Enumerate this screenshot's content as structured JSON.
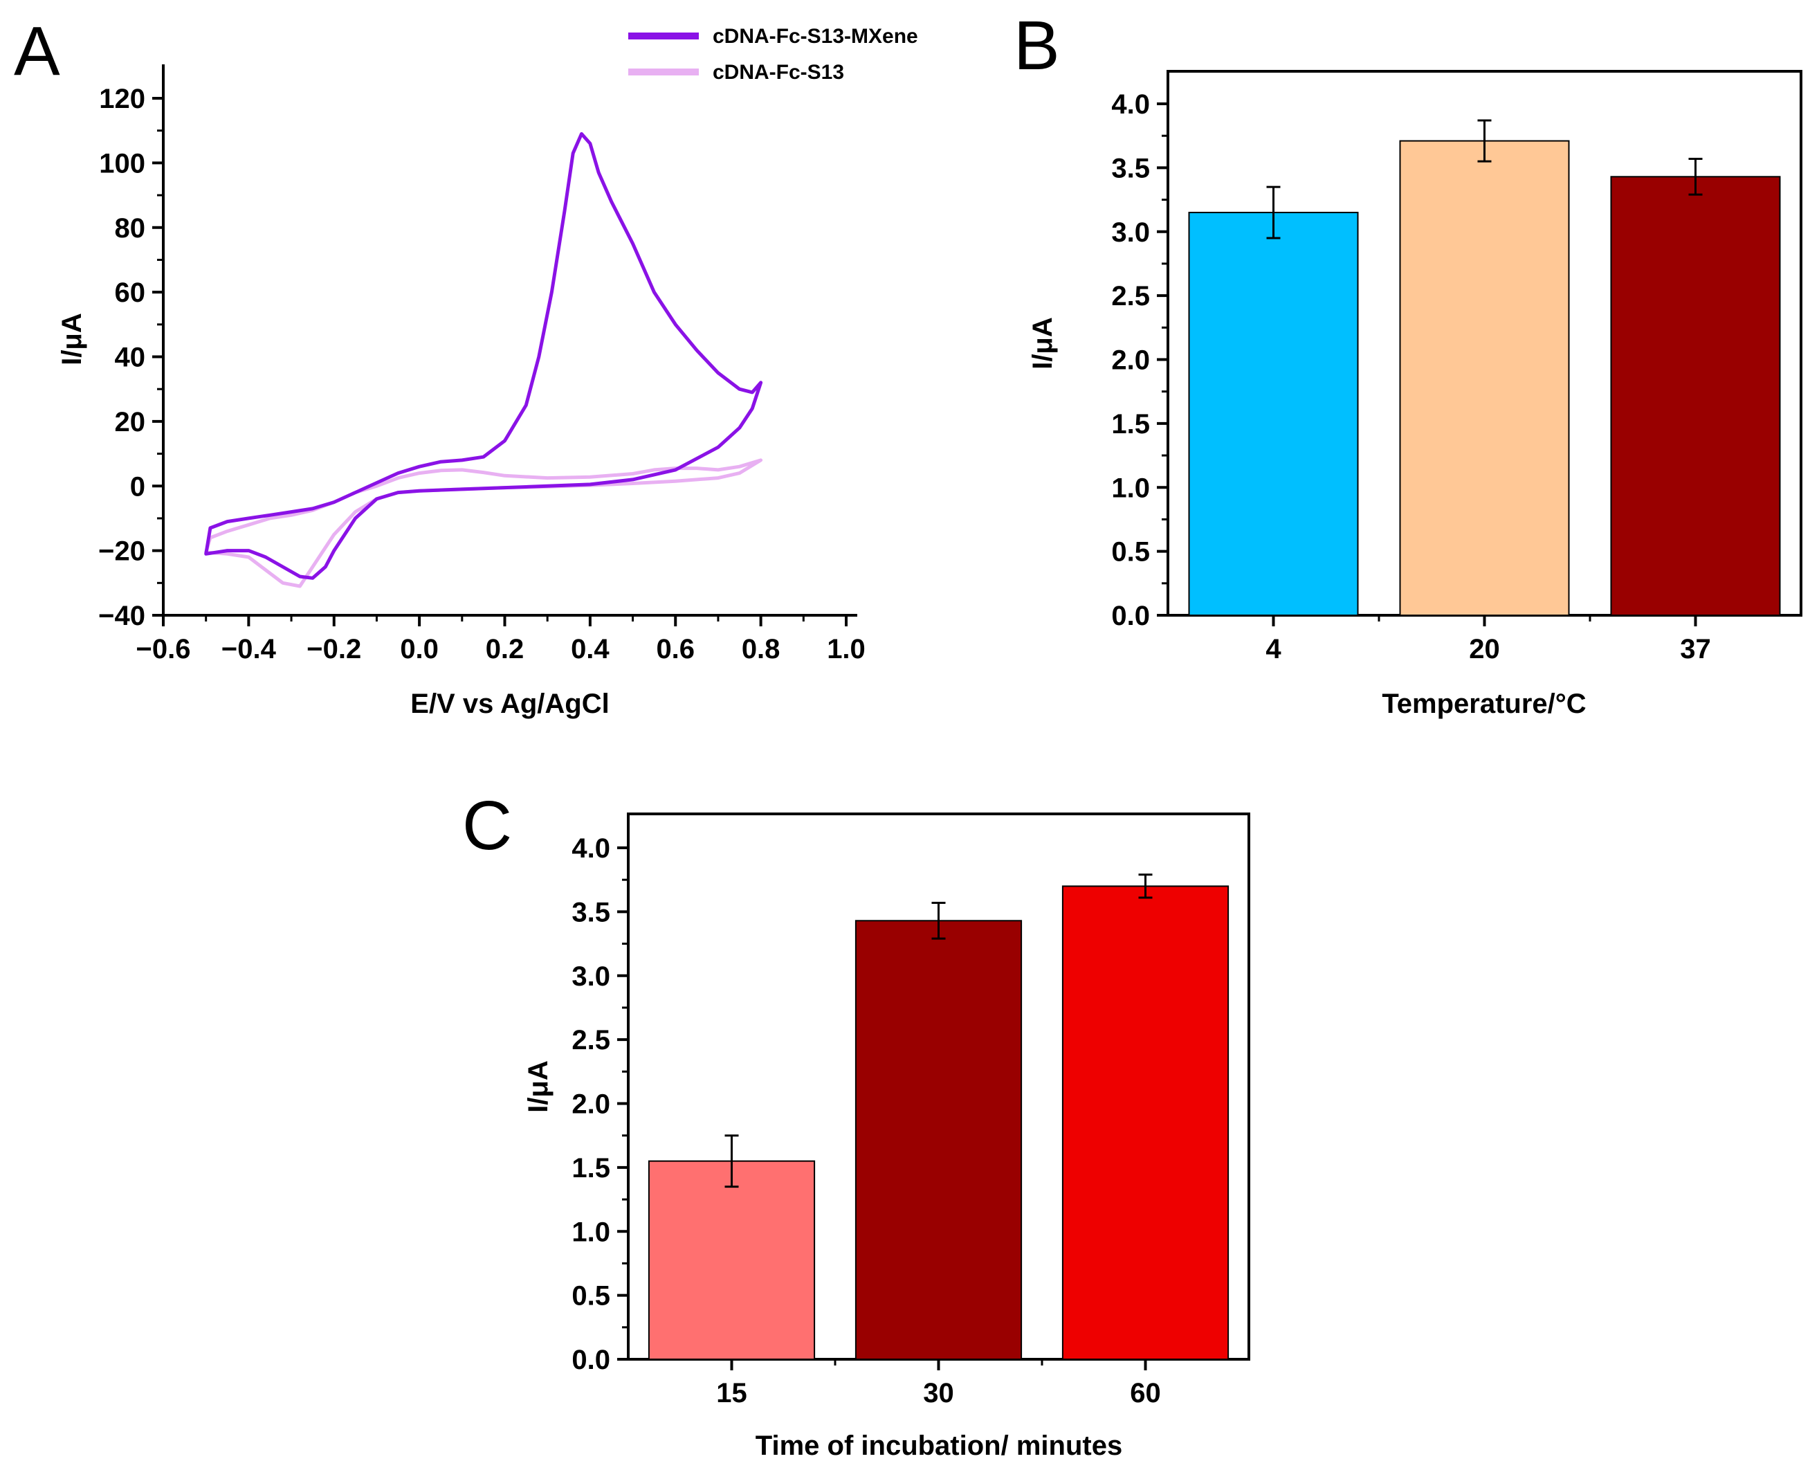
{
  "chart_data": [
    {
      "panel": "A",
      "type": "line",
      "xlabel": "E/V vs Ag/AgCl",
      "ylabel": "I/μA",
      "xlim": [
        -0.6,
        1.0
      ],
      "ylim": [
        -40,
        130
      ],
      "xticks": [
        -0.6,
        -0.4,
        -0.2,
        0.0,
        0.2,
        0.4,
        0.6,
        0.8,
        1.0
      ],
      "xtick_labels": [
        "−0.6",
        "−0.4",
        "−0.2",
        "0.0",
        "0.2",
        "0.4",
        "0.6",
        "0.8",
        "1.0"
      ],
      "yticks": [
        -40,
        -20,
        0,
        20,
        40,
        60,
        80,
        100,
        120
      ],
      "ytick_labels": [
        "−40",
        "−20",
        "0",
        "20",
        "40",
        "60",
        "80",
        "100",
        "120"
      ],
      "legend_position": "top-right",
      "series": [
        {
          "name": "cDNA-Fc-S13-MXene",
          "color": "#8a12e6",
          "x": [
            -0.49,
            -0.45,
            -0.4,
            -0.35,
            -0.3,
            -0.25,
            -0.2,
            -0.15,
            -0.1,
            -0.05,
            0.0,
            0.05,
            0.1,
            0.15,
            0.2,
            0.25,
            0.28,
            0.31,
            0.34,
            0.36,
            0.38,
            0.4,
            0.42,
            0.45,
            0.5,
            0.55,
            0.6,
            0.65,
            0.7,
            0.75,
            0.78,
            0.8,
            0.8,
            0.78,
            0.75,
            0.7,
            0.6,
            0.5,
            0.4,
            0.3,
            0.2,
            0.1,
            0.0,
            -0.05,
            -0.1,
            -0.15,
            -0.2,
            -0.22,
            -0.25,
            -0.28,
            -0.32,
            -0.36,
            -0.4,
            -0.45,
            -0.5,
            -0.49
          ],
          "y": [
            -13,
            -11,
            -10,
            -9,
            -8,
            -7,
            -5,
            -2,
            1,
            4,
            6,
            7.5,
            8,
            9,
            14,
            25,
            40,
            60,
            85,
            103,
            109,
            106,
            97,
            88,
            75,
            60,
            50,
            42,
            35,
            30,
            29,
            32,
            32,
            24,
            18,
            12,
            5,
            2,
            0.5,
            0,
            -0.5,
            -1,
            -1.5,
            -2,
            -4,
            -10,
            -20,
            -25,
            -28.5,
            -28,
            -25,
            -22,
            -20,
            -20,
            -21,
            -13
          ]
        },
        {
          "name": "cDNA-Fc-S13",
          "color": "#e8b0f2",
          "x": [
            -0.49,
            -0.45,
            -0.4,
            -0.35,
            -0.3,
            -0.25,
            -0.2,
            -0.15,
            -0.1,
            -0.05,
            0.0,
            0.05,
            0.1,
            0.15,
            0.2,
            0.3,
            0.4,
            0.5,
            0.55,
            0.6,
            0.65,
            0.7,
            0.75,
            0.8,
            0.8,
            0.75,
            0.7,
            0.6,
            0.5,
            0.4,
            0.3,
            0.2,
            0.1,
            0.0,
            -0.05,
            -0.1,
            -0.15,
            -0.2,
            -0.25,
            -0.28,
            -0.32,
            -0.36,
            -0.4,
            -0.45,
            -0.5,
            -0.49
          ],
          "y": [
            -16,
            -14,
            -12,
            -10,
            -9,
            -7.5,
            -5,
            -2,
            0,
            2.5,
            4,
            4.8,
            5,
            4.2,
            3.2,
            2.5,
            2.8,
            3.8,
            5,
            5.5,
            5.5,
            5,
            6,
            8,
            8,
            4,
            2.5,
            1.5,
            0.8,
            0.2,
            -0.2,
            -0.5,
            -1,
            -1.5,
            -2,
            -4,
            -8,
            -15,
            -25,
            -31,
            -30,
            -26,
            -22,
            -21,
            -20.5,
            -16
          ]
        }
      ]
    },
    {
      "panel": "B",
      "type": "bar",
      "xlabel": "Temperature/°C",
      "ylabel": "I/μA",
      "ylim": [
        0,
        4.25
      ],
      "yticks": [
        0.0,
        0.5,
        1.0,
        1.5,
        2.0,
        2.5,
        3.0,
        3.5,
        4.0
      ],
      "ytick_labels": [
        "0.0",
        "0.5",
        "1.0",
        "1.5",
        "2.0",
        "2.5",
        "3.0",
        "3.5",
        "4.0"
      ],
      "categories": [
        "4",
        "20",
        "37"
      ],
      "values": [
        3.15,
        3.71,
        3.43
      ],
      "errors": [
        0.2,
        0.16,
        0.14
      ],
      "colors": [
        "#00bfff",
        "#ffc896",
        "#990000"
      ]
    },
    {
      "panel": "C",
      "type": "bar",
      "xlabel": "Time of incubation/ minutes",
      "ylabel": "I/μA",
      "ylim": [
        0,
        4.25
      ],
      "yticks": [
        0.0,
        0.5,
        1.0,
        1.5,
        2.0,
        2.5,
        3.0,
        3.5,
        4.0
      ],
      "ytick_labels": [
        "0.0",
        "0.5",
        "1.0",
        "1.5",
        "2.0",
        "2.5",
        "3.0",
        "3.5",
        "4.0"
      ],
      "categories": [
        "15",
        "30",
        "60"
      ],
      "values": [
        1.55,
        3.43,
        3.7
      ],
      "errors": [
        0.2,
        0.14,
        0.09
      ],
      "colors": [
        "#ff7070",
        "#990000",
        "#ee0000"
      ]
    }
  ]
}
